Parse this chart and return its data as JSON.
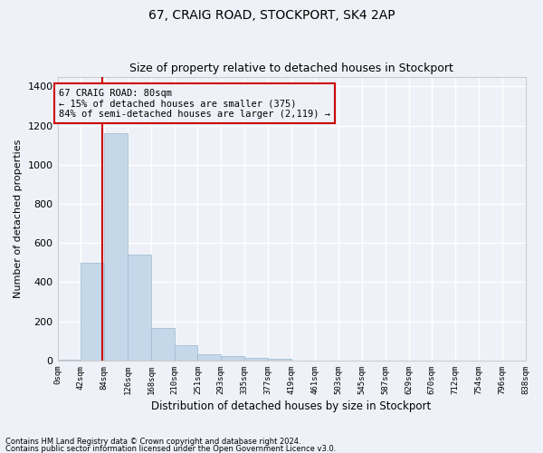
{
  "title": "67, CRAIG ROAD, STOCKPORT, SK4 2AP",
  "subtitle": "Size of property relative to detached houses in Stockport",
  "xlabel": "Distribution of detached houses by size in Stockport",
  "ylabel": "Number of detached properties",
  "footnote1": "Contains HM Land Registry data © Crown copyright and database right 2024.",
  "footnote2": "Contains public sector information licensed under the Open Government Licence v3.0.",
  "annotation_line1": "67 CRAIG ROAD: 80sqm",
  "annotation_line2": "← 15% of detached houses are smaller (375)",
  "annotation_line3": "84% of semi-detached houses are larger (2,119) →",
  "property_size": 80,
  "bar_color": "#c5d8ea",
  "bar_edge_color": "#9bb8d0",
  "red_line_color": "#cc0000",
  "background_color": "#eef2f8",
  "grid_color": "#ffffff",
  "bin_edges": [
    0,
    42,
    84,
    126,
    168,
    210,
    251,
    293,
    335,
    377,
    419,
    461,
    503,
    545,
    587,
    629,
    670,
    712,
    754,
    796,
    838
  ],
  "bin_labels": [
    "0sqm",
    "42sqm",
    "84sqm",
    "126sqm",
    "168sqm",
    "210sqm",
    "251sqm",
    "293sqm",
    "335sqm",
    "377sqm",
    "419sqm",
    "461sqm",
    "503sqm",
    "545sqm",
    "587sqm",
    "629sqm",
    "670sqm",
    "712sqm",
    "754sqm",
    "796sqm",
    "838sqm"
  ],
  "counts": [
    5,
    500,
    1160,
    540,
    165,
    80,
    30,
    22,
    15,
    10,
    0,
    0,
    0,
    0,
    0,
    0,
    0,
    0,
    0,
    0
  ],
  "ylim": [
    0,
    1450
  ],
  "yticks": [
    0,
    200,
    400,
    600,
    800,
    1000,
    1200,
    1400
  ]
}
